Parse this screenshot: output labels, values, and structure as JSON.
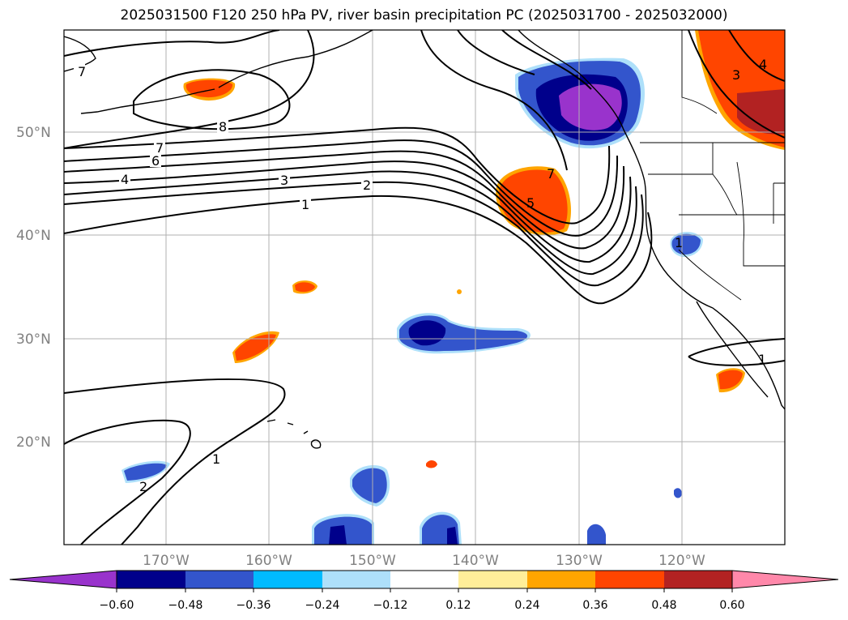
{
  "title": "2025031500 F120 250 hPa PV, river basin precipitation PC (2025031700 - 2025032000)",
  "map": {
    "lat_labels": [
      "50°N",
      "40°N",
      "30°N",
      "20°N"
    ],
    "lon_labels": [
      "170°W",
      "160°W",
      "150°W",
      "140°W",
      "130°W",
      "120°W"
    ],
    "pv_contour_labels": [
      "7",
      "8",
      "7",
      "6",
      "4",
      "3",
      "2",
      "1",
      "5",
      "7",
      "1",
      "1",
      "2",
      "3",
      "4",
      "1"
    ]
  },
  "colorbar": {
    "colors": [
      "#9933cc",
      "#00008b",
      "#3355cc",
      "#00bbff",
      "#aee0fa",
      "#ffffff",
      "#ffee99",
      "#ffa500",
      "#ff4500",
      "#b22222",
      "#ff88aa"
    ],
    "ticks": [
      "−0.60",
      "−0.48",
      "−0.36",
      "−0.24",
      "−0.12",
      "0.12",
      "0.24",
      "0.36",
      "0.48",
      "0.60"
    ]
  }
}
